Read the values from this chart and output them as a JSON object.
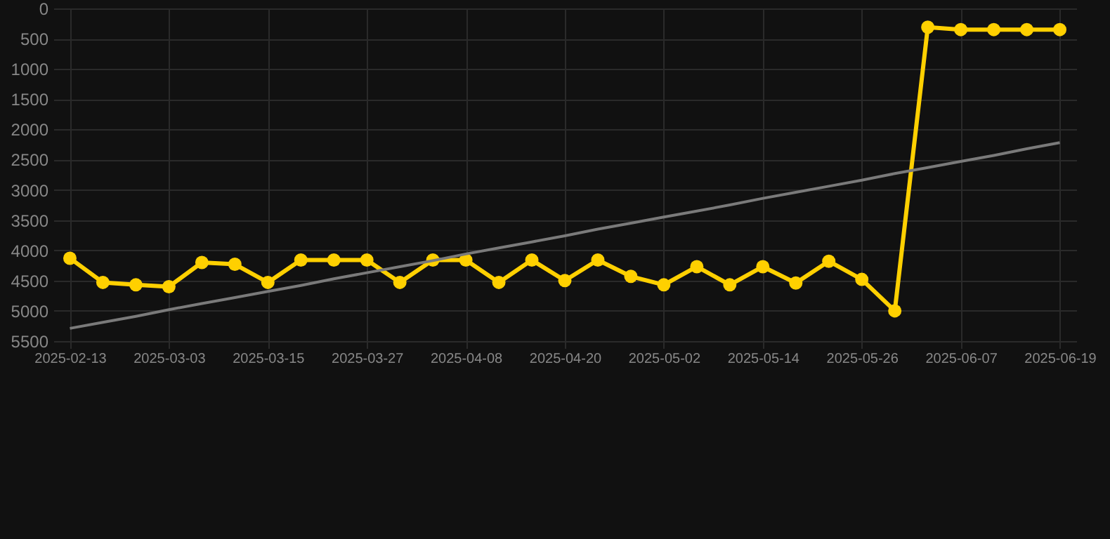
{
  "chart_data": {
    "type": "line",
    "categories": [
      "2025-02-13",
      null,
      null,
      "2025-03-03",
      null,
      null,
      "2025-03-15",
      null,
      null,
      "2025-03-27",
      null,
      null,
      "2025-04-08",
      null,
      null,
      "2025-04-20",
      null,
      null,
      "2025-05-02",
      null,
      null,
      "2025-05-14",
      null,
      null,
      "2025-05-26",
      null,
      null,
      "2025-06-07",
      null,
      null,
      "2025-06-19"
    ],
    "series": [
      {
        "color": "#ffd000",
        "values": [
          4130,
          4530,
          4570,
          4600,
          4200,
          4230,
          4530,
          4160,
          4160,
          4160,
          4530,
          4160,
          4160,
          4530,
          4160,
          4500,
          4160,
          4430,
          4570,
          4270,
          4570,
          4270,
          4540,
          4180,
          4480,
          5000,
          310,
          350,
          350,
          350,
          350
        ]
      },
      {
        "type": "line",
        "color": "#7a7a7a",
        "values": [
          5290,
          5190,
          5090,
          4980,
          4880,
          4780,
          4680,
          4580,
          4470,
          4370,
          4270,
          4170,
          4060,
          3960,
          3860,
          3760,
          3650,
          3550,
          3450,
          3350,
          3250,
          3140,
          3040,
          2940,
          2840,
          2730,
          2630,
          2530,
          2430,
          2320,
          2220
        ],
        "marker": "none"
      }
    ],
    "ylim": [
      5500,
      0
    ],
    "yticks": [
      0,
      500,
      1000,
      1500,
      2000,
      2500,
      3000,
      3500,
      4000,
      4500,
      5000,
      5500
    ],
    "grid": true,
    "marker": "circle"
  }
}
